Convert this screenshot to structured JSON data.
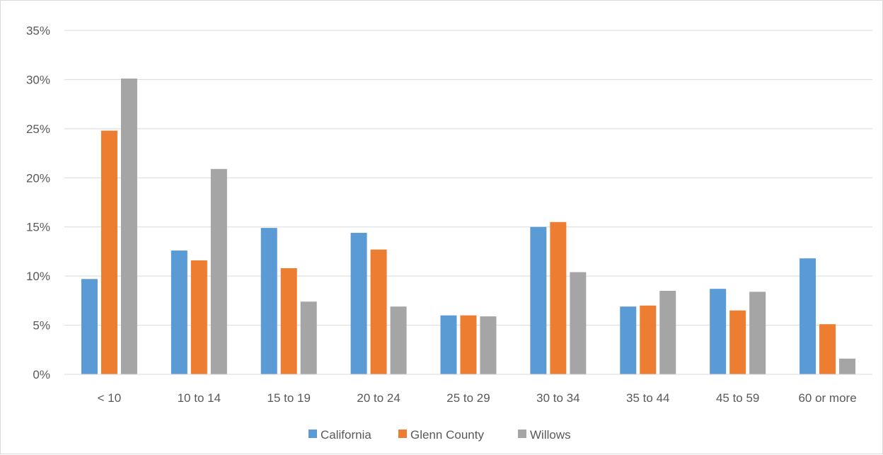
{
  "chart_data": {
    "type": "bar",
    "categories": [
      "< 10",
      "10 to 14",
      "15 to 19",
      "20 to 24",
      "25 to 29",
      "30 to 34",
      "35 to 44",
      "45 to 59",
      "60 or more"
    ],
    "series": [
      {
        "name": "California",
        "color": "#5b9bd5",
        "values": [
          9.7,
          12.6,
          14.9,
          14.4,
          6.0,
          15.0,
          6.9,
          8.7,
          11.8
        ]
      },
      {
        "name": "Glenn County",
        "color": "#ed7d31",
        "values": [
          24.8,
          11.6,
          10.8,
          12.7,
          6.0,
          15.5,
          7.0,
          6.5,
          5.1
        ]
      },
      {
        "name": "Willows",
        "color": "#a5a5a5",
        "values": [
          30.1,
          20.9,
          7.4,
          6.9,
          5.9,
          10.4,
          8.5,
          8.4,
          1.6
        ]
      }
    ],
    "ylim": [
      0,
      35
    ],
    "yticks": [
      "0%",
      "5%",
      "10%",
      "15%",
      "20%",
      "25%",
      "30%",
      "35%"
    ],
    "ytick_values": [
      0,
      5,
      10,
      15,
      20,
      25,
      30,
      35
    ],
    "grid": true,
    "legend_position": "bottom"
  }
}
